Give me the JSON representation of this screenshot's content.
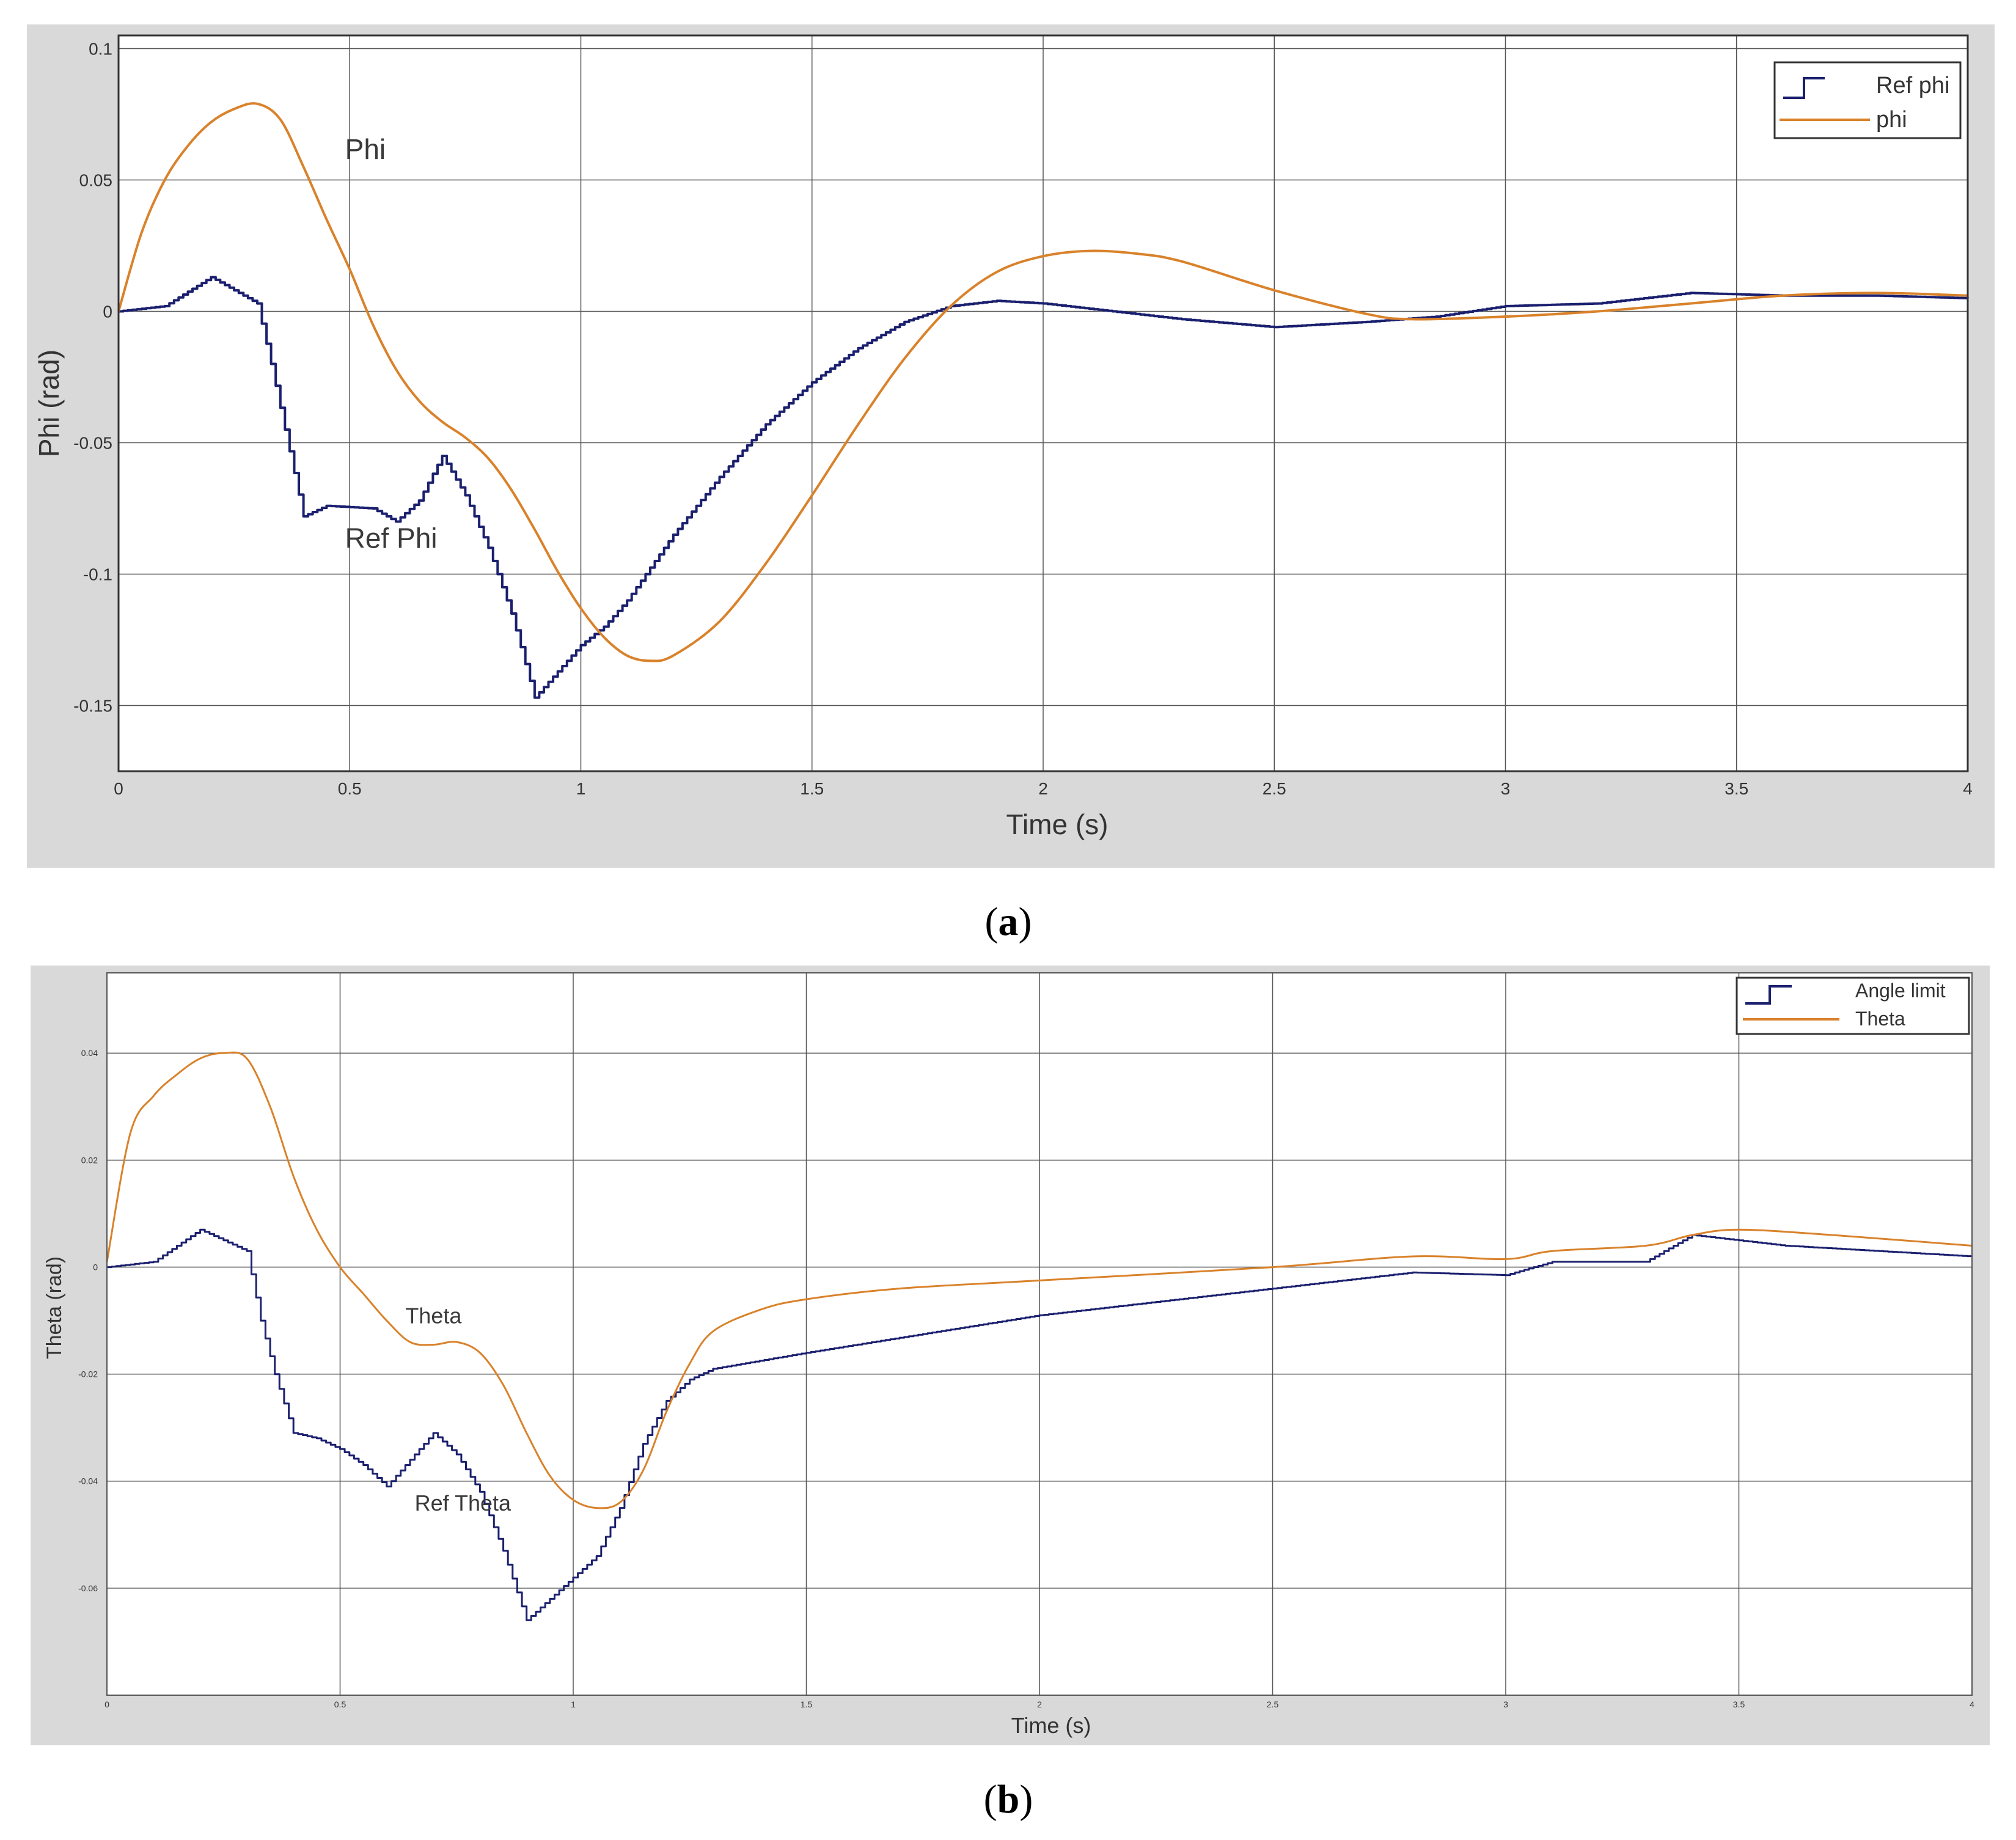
{
  "colors": {
    "ref_series": "#1a1f6e",
    "actual_series": "#d9822b",
    "panel_background": "#d9d9d9",
    "plot_background": "#ffffff",
    "grid": "#555555"
  },
  "chart_data": [
    {
      "type": "line",
      "caption_letter": "a",
      "xlabel": "Time (s)",
      "ylabel": "Phi (rad)",
      "xlim": [
        0,
        4
      ],
      "ylim": [
        -0.175,
        0.105
      ],
      "x_ticks": [
        0,
        0.5,
        1,
        1.5,
        2,
        2.5,
        3,
        3.5,
        4
      ],
      "x_tick_labels": [
        "0",
        "0.5",
        "1",
        "1.5",
        "2",
        "2.5",
        "3",
        "3.5",
        "4"
      ],
      "y_ticks": [
        0.1,
        0.05,
        0,
        -0.05,
        -0.1,
        -0.15
      ],
      "y_tick_labels": [
        "0.1",
        "0.05",
        "0",
        "-0.05",
        "-0.1",
        "-0.15"
      ],
      "grid": true,
      "legend": {
        "position": "top-right",
        "entries": [
          "Ref phi",
          "phi"
        ]
      },
      "series": [
        {
          "name": "Ref phi",
          "style": "step",
          "points": [
            [
              0,
              0
            ],
            [
              0.1,
              0.002
            ],
            [
              0.2,
              0.013
            ],
            [
              0.25,
              0.008
            ],
            [
              0.3,
              0.003
            ],
            [
              0.33,
              -0.02
            ],
            [
              0.36,
              -0.045
            ],
            [
              0.4,
              -0.078
            ],
            [
              0.45,
              -0.074
            ],
            [
              0.55,
              -0.075
            ],
            [
              0.6,
              -0.08
            ],
            [
              0.65,
              -0.072
            ],
            [
              0.7,
              -0.055
            ],
            [
              0.75,
              -0.07
            ],
            [
              0.8,
              -0.09
            ],
            [
              0.85,
              -0.115
            ],
            [
              0.9,
              -0.147
            ],
            [
              0.95,
              -0.137
            ],
            [
              1.0,
              -0.127
            ],
            [
              1.05,
              -0.12
            ],
            [
              1.1,
              -0.11
            ],
            [
              1.2,
              -0.085
            ],
            [
              1.3,
              -0.063
            ],
            [
              1.4,
              -0.043
            ],
            [
              1.5,
              -0.027
            ],
            [
              1.6,
              -0.014
            ],
            [
              1.7,
              -0.004
            ],
            [
              1.8,
              0.002
            ],
            [
              1.9,
              0.004
            ],
            [
              2.0,
              0.003
            ],
            [
              2.1,
              0.001
            ],
            [
              2.3,
              -0.003
            ],
            [
              2.5,
              -0.006
            ],
            [
              2.7,
              -0.004
            ],
            [
              2.85,
              -0.002
            ],
            [
              3.0,
              0.002
            ],
            [
              3.2,
              0.003
            ],
            [
              3.3,
              0.005
            ],
            [
              3.4,
              0.007
            ],
            [
              3.6,
              0.006
            ],
            [
              3.8,
              0.006
            ],
            [
              4.0,
              0.005
            ]
          ]
        },
        {
          "name": "phi",
          "style": "line",
          "points": [
            [
              0,
              0
            ],
            [
              0.05,
              0.03
            ],
            [
              0.1,
              0.05
            ],
            [
              0.15,
              0.063
            ],
            [
              0.2,
              0.072
            ],
            [
              0.25,
              0.077
            ],
            [
              0.3,
              0.079
            ],
            [
              0.35,
              0.073
            ],
            [
              0.4,
              0.055
            ],
            [
              0.45,
              0.035
            ],
            [
              0.5,
              0.016
            ],
            [
              0.55,
              -0.005
            ],
            [
              0.6,
              -0.022
            ],
            [
              0.65,
              -0.034
            ],
            [
              0.7,
              -0.042
            ],
            [
              0.75,
              -0.048
            ],
            [
              0.8,
              -0.056
            ],
            [
              0.85,
              -0.068
            ],
            [
              0.9,
              -0.083
            ],
            [
              0.95,
              -0.099
            ],
            [
              1.0,
              -0.113
            ],
            [
              1.05,
              -0.124
            ],
            [
              1.1,
              -0.131
            ],
            [
              1.15,
              -0.133
            ],
            [
              1.2,
              -0.131
            ],
            [
              1.3,
              -0.118
            ],
            [
              1.4,
              -0.096
            ],
            [
              1.5,
              -0.07
            ],
            [
              1.6,
              -0.043
            ],
            [
              1.7,
              -0.018
            ],
            [
              1.8,
              0.002
            ],
            [
              1.9,
              0.015
            ],
            [
              2.0,
              0.021
            ],
            [
              2.1,
              0.023
            ],
            [
              2.2,
              0.022
            ],
            [
              2.3,
              0.019
            ],
            [
              2.5,
              0.008
            ],
            [
              2.7,
              -0.001
            ],
            [
              2.8,
              -0.003
            ],
            [
              3.0,
              -0.002
            ],
            [
              3.2,
              0.0
            ],
            [
              3.4,
              0.003
            ],
            [
              3.6,
              0.006
            ],
            [
              3.8,
              0.007
            ],
            [
              4.0,
              0.006
            ]
          ]
        }
      ],
      "annotations": [
        {
          "text": "Phi",
          "x": 0.49,
          "y": 0.058
        },
        {
          "text": "Ref Phi",
          "x": 0.49,
          "y": -0.09
        }
      ]
    },
    {
      "type": "line",
      "caption_letter": "b",
      "xlabel": "Time (s)",
      "ylabel": "Theta (rad)",
      "xlim": [
        0,
        4
      ],
      "ylim": [
        -0.08,
        0.055
      ],
      "x_ticks": [
        0,
        0.5,
        1,
        1.5,
        2,
        2.5,
        3,
        3.5,
        4
      ],
      "x_tick_labels": [
        "0",
        "0.5",
        "1",
        "1.5",
        "2",
        "2.5",
        "3",
        "3.5",
        "4"
      ],
      "y_ticks": [
        0.04,
        0.02,
        0,
        -0.02,
        -0.04,
        -0.06
      ],
      "y_tick_labels": [
        "0.04",
        "0.02",
        "0",
        "-0.02",
        "-0.04",
        "-0.06"
      ],
      "grid": true,
      "legend": {
        "position": "top-right",
        "entries": [
          "Angle limit",
          "Theta"
        ]
      },
      "series": [
        {
          "name": "Angle limit",
          "style": "step",
          "points": [
            [
              0,
              0
            ],
            [
              0.1,
              0.001
            ],
            [
              0.2,
              0.007
            ],
            [
              0.25,
              0.005
            ],
            [
              0.3,
              0.003
            ],
            [
              0.33,
              -0.01
            ],
            [
              0.36,
              -0.02
            ],
            [
              0.4,
              -0.031
            ],
            [
              0.45,
              -0.032
            ],
            [
              0.5,
              -0.034
            ],
            [
              0.55,
              -0.037
            ],
            [
              0.6,
              -0.041
            ],
            [
              0.65,
              -0.036
            ],
            [
              0.7,
              -0.031
            ],
            [
              0.75,
              -0.035
            ],
            [
              0.8,
              -0.042
            ],
            [
              0.85,
              -0.053
            ],
            [
              0.9,
              -0.066
            ],
            [
              0.95,
              -0.062
            ],
            [
              1.0,
              -0.058
            ],
            [
              1.05,
              -0.054
            ],
            [
              1.1,
              -0.045
            ],
            [
              1.15,
              -0.033
            ],
            [
              1.2,
              -0.025
            ],
            [
              1.25,
              -0.021
            ],
            [
              1.3,
              -0.019
            ],
            [
              1.5,
              -0.016
            ],
            [
              2.0,
              -0.009
            ],
            [
              2.5,
              -0.004
            ],
            [
              2.8,
              -0.001
            ],
            [
              3.0,
              -0.0015
            ],
            [
              3.1,
              0.001
            ],
            [
              3.3,
              0.001
            ],
            [
              3.4,
              0.006
            ],
            [
              3.6,
              0.004
            ],
            [
              4.0,
              0.002
            ]
          ]
        },
        {
          "name": "Theta",
          "style": "line",
          "points": [
            [
              0,
              0.001
            ],
            [
              0.05,
              0.025
            ],
            [
              0.1,
              0.032
            ],
            [
              0.15,
              0.036
            ],
            [
              0.2,
              0.039
            ],
            [
              0.25,
              0.04
            ],
            [
              0.3,
              0.039
            ],
            [
              0.35,
              0.03
            ],
            [
              0.4,
              0.017
            ],
            [
              0.45,
              0.007
            ],
            [
              0.5,
              0.0
            ],
            [
              0.55,
              -0.005
            ],
            [
              0.6,
              -0.01
            ],
            [
              0.65,
              -0.014
            ],
            [
              0.7,
              -0.0145
            ],
            [
              0.75,
              -0.014
            ],
            [
              0.8,
              -0.016
            ],
            [
              0.85,
              -0.022
            ],
            [
              0.9,
              -0.031
            ],
            [
              0.95,
              -0.039
            ],
            [
              1.0,
              -0.0435
            ],
            [
              1.05,
              -0.045
            ],
            [
              1.1,
              -0.044
            ],
            [
              1.15,
              -0.038
            ],
            [
              1.2,
              -0.027
            ],
            [
              1.25,
              -0.018
            ],
            [
              1.3,
              -0.012
            ],
            [
              1.4,
              -0.008
            ],
            [
              1.5,
              -0.006
            ],
            [
              1.7,
              -0.004
            ],
            [
              2.0,
              -0.0025
            ],
            [
              2.5,
              0.0
            ],
            [
              2.8,
              0.002
            ],
            [
              3.0,
              0.0015
            ],
            [
              3.1,
              0.003
            ],
            [
              3.3,
              0.004
            ],
            [
              3.4,
              0.006
            ],
            [
              3.5,
              0.007
            ],
            [
              3.7,
              0.006
            ],
            [
              4.0,
              0.004
            ]
          ]
        }
      ],
      "annotations": [
        {
          "text": "Theta",
          "x": 0.64,
          "y": -0.0105
        },
        {
          "text": "Ref Theta",
          "x": 0.66,
          "y": -0.0455
        }
      ]
    }
  ]
}
